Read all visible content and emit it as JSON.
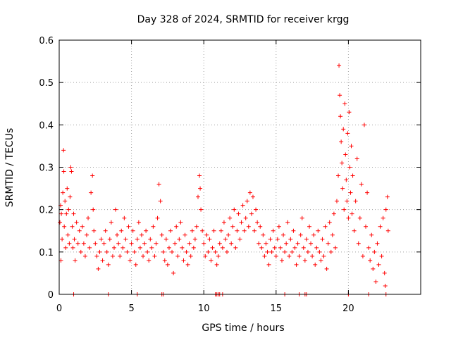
{
  "chart_data": {
    "type": "scatter",
    "title": "Day 328 of 2024, SRMTID for receiver krgg",
    "xlabel": "GPS time / hours",
    "ylabel": "SRMTID / TECUs",
    "xlim": [
      0,
      25
    ],
    "ylim": [
      0,
      0.6
    ],
    "x_ticks": [
      0,
      5,
      10,
      15,
      20
    ],
    "x_tick_labels": [
      "0",
      "5",
      "10",
      "15",
      "20"
    ],
    "y_ticks": [
      0,
      0.1,
      0.2,
      0.3,
      0.4,
      0.5,
      0.6
    ],
    "y_tick_labels": [
      "0",
      "0.1",
      "0.2",
      "0.3",
      "0.4",
      "0.5",
      "0.6"
    ],
    "grid": true,
    "marker": "plus",
    "series": [
      {
        "name": "krgg",
        "color": "#ff0000",
        "points": [
          [
            0.05,
            0.17
          ],
          [
            0.1,
            0.21
          ],
          [
            0.12,
            0.08
          ],
          [
            0.15,
            0.19
          ],
          [
            0.2,
            0.13
          ],
          [
            0.25,
            0.24
          ],
          [
            0.3,
            0.34
          ],
          [
            0.32,
            0.29
          ],
          [
            0.35,
            0.16
          ],
          [
            0.4,
            0.22
          ],
          [
            0.45,
            0.11
          ],
          [
            0.5,
            0.19
          ],
          [
            0.55,
            0.25
          ],
          [
            0.6,
            0.14
          ],
          [
            0.65,
            0.2
          ],
          [
            0.7,
            0.12
          ],
          [
            0.75,
            0.23
          ],
          [
            0.8,
            0.3
          ],
          [
            0.85,
            0.29
          ],
          [
            0.9,
            0.16
          ],
          [
            0.95,
            0.11
          ],
          [
            1.0,
            0.19
          ],
          [
            1.05,
            0.13
          ],
          [
            1.1,
            0.08
          ],
          [
            1.2,
            0.17
          ],
          [
            1.3,
            0.12
          ],
          [
            1.4,
            0.15
          ],
          [
            1.5,
            0.1
          ],
          [
            1.6,
            0.16
          ],
          [
            1.7,
            0.12
          ],
          [
            1.8,
            0.09
          ],
          [
            1.9,
            0.14
          ],
          [
            2.0,
            0.18
          ],
          [
            2.1,
            0.11
          ],
          [
            2.2,
            0.24
          ],
          [
            2.3,
            0.28
          ],
          [
            2.35,
            0.2
          ],
          [
            2.4,
            0.15
          ],
          [
            2.5,
            0.12
          ],
          [
            2.6,
            0.09
          ],
          [
            2.7,
            0.06
          ],
          [
            2.8,
            0.1
          ],
          [
            2.9,
            0.13
          ],
          [
            3.0,
            0.08
          ],
          [
            3.1,
            0.12
          ],
          [
            3.2,
            0.15
          ],
          [
            3.3,
            0.1
          ],
          [
            3.4,
            0.07
          ],
          [
            3.5,
            0.13
          ],
          [
            3.6,
            0.17
          ],
          [
            3.7,
            0.09
          ],
          [
            3.8,
            0.11
          ],
          [
            3.9,
            0.2
          ],
          [
            4.0,
            0.14
          ],
          [
            4.1,
            0.12
          ],
          [
            4.2,
            0.09
          ],
          [
            4.3,
            0.15
          ],
          [
            4.4,
            0.11
          ],
          [
            4.5,
            0.18
          ],
          [
            4.6,
            0.13
          ],
          [
            4.7,
            0.1
          ],
          [
            4.8,
            0.16
          ],
          [
            4.9,
            0.08
          ],
          [
            5.0,
            0.12
          ],
          [
            5.1,
            0.15
          ],
          [
            5.2,
            0.1
          ],
          [
            5.3,
            0.07
          ],
          [
            5.4,
            0.13
          ],
          [
            5.5,
            0.17
          ],
          [
            5.6,
            0.11
          ],
          [
            5.7,
            0.14
          ],
          [
            5.8,
            0.09
          ],
          [
            5.9,
            0.12
          ],
          [
            6.0,
            0.15
          ],
          [
            6.1,
            0.1
          ],
          [
            6.2,
            0.08
          ],
          [
            6.3,
            0.13
          ],
          [
            6.4,
            0.11
          ],
          [
            6.5,
            0.16
          ],
          [
            6.6,
            0.09
          ],
          [
            6.7,
            0.12
          ],
          [
            6.8,
            0.18
          ],
          [
            6.9,
            0.26
          ],
          [
            7.0,
            0.22
          ],
          [
            7.1,
            0.14
          ],
          [
            7.2,
            0.1
          ],
          [
            7.3,
            0.08
          ],
          [
            7.4,
            0.13
          ],
          [
            7.5,
            0.07
          ],
          [
            7.6,
            0.11
          ],
          [
            7.7,
            0.15
          ],
          [
            7.8,
            0.1
          ],
          [
            7.9,
            0.05
          ],
          [
            8.0,
            0.12
          ],
          [
            8.1,
            0.16
          ],
          [
            8.2,
            0.09
          ],
          [
            8.3,
            0.13
          ],
          [
            8.4,
            0.17
          ],
          [
            8.5,
            0.11
          ],
          [
            8.6,
            0.08
          ],
          [
            8.7,
            0.14
          ],
          [
            8.8,
            0.1
          ],
          [
            8.9,
            0.07
          ],
          [
            9.0,
            0.12
          ],
          [
            9.1,
            0.09
          ],
          [
            9.2,
            0.15
          ],
          [
            9.3,
            0.11
          ],
          [
            9.4,
            0.13
          ],
          [
            9.5,
            0.16
          ],
          [
            9.6,
            0.23
          ],
          [
            9.7,
            0.28
          ],
          [
            9.75,
            0.25
          ],
          [
            9.8,
            0.2
          ],
          [
            9.9,
            0.15
          ],
          [
            10.0,
            0.12
          ],
          [
            10.1,
            0.09
          ],
          [
            10.2,
            0.14
          ],
          [
            10.3,
            0.1
          ],
          [
            10.4,
            0.13
          ],
          [
            10.5,
            0.08
          ],
          [
            10.6,
            0.11
          ],
          [
            10.7,
            0.15
          ],
          [
            10.8,
            0.1
          ],
          [
            10.9,
            0.07
          ],
          [
            11.0,
            0.09
          ],
          [
            11.1,
            0.12
          ],
          [
            11.2,
            0.15
          ],
          [
            11.3,
            0.11
          ],
          [
            11.4,
            0.17
          ],
          [
            11.5,
            0.13
          ],
          [
            11.6,
            0.1
          ],
          [
            11.7,
            0.14
          ],
          [
            11.8,
            0.18
          ],
          [
            11.9,
            0.12
          ],
          [
            12.0,
            0.16
          ],
          [
            12.1,
            0.2
          ],
          [
            12.2,
            0.11
          ],
          [
            12.3,
            0.15
          ],
          [
            12.4,
            0.19
          ],
          [
            12.5,
            0.13
          ],
          [
            12.6,
            0.17
          ],
          [
            12.7,
            0.21
          ],
          [
            12.8,
            0.15
          ],
          [
            12.9,
            0.18
          ],
          [
            13.0,
            0.22
          ],
          [
            13.1,
            0.16
          ],
          [
            13.2,
            0.24
          ],
          [
            13.3,
            0.19
          ],
          [
            13.4,
            0.23
          ],
          [
            13.5,
            0.15
          ],
          [
            13.6,
            0.2
          ],
          [
            13.7,
            0.17
          ],
          [
            13.8,
            0.12
          ],
          [
            13.9,
            0.16
          ],
          [
            14.0,
            0.11
          ],
          [
            14.1,
            0.14
          ],
          [
            14.2,
            0.09
          ],
          [
            14.3,
            0.12
          ],
          [
            14.4,
            0.1
          ],
          [
            14.5,
            0.07
          ],
          [
            14.6,
            0.13
          ],
          [
            14.7,
            0.1
          ],
          [
            14.8,
            0.15
          ],
          [
            14.9,
            0.11
          ],
          [
            15.0,
            0.09
          ],
          [
            15.1,
            0.13
          ],
          [
            15.2,
            0.16
          ],
          [
            15.3,
            0.11
          ],
          [
            15.4,
            0.08
          ],
          [
            15.5,
            0.14
          ],
          [
            15.6,
            0.1
          ],
          [
            15.7,
            0.12
          ],
          [
            15.8,
            0.17
          ],
          [
            15.9,
            0.09
          ],
          [
            16.0,
            0.13
          ],
          [
            16.1,
            0.1
          ],
          [
            16.2,
            0.15
          ],
          [
            16.3,
            0.11
          ],
          [
            16.4,
            0.07
          ],
          [
            16.5,
            0.12
          ],
          [
            16.6,
            0.09
          ],
          [
            16.7,
            0.14
          ],
          [
            16.8,
            0.18
          ],
          [
            16.9,
            0.11
          ],
          [
            17.0,
            0.08
          ],
          [
            17.1,
            0.13
          ],
          [
            17.2,
            0.1
          ],
          [
            17.3,
            0.16
          ],
          [
            17.4,
            0.12
          ],
          [
            17.5,
            0.09
          ],
          [
            17.6,
            0.14
          ],
          [
            17.7,
            0.07
          ],
          [
            17.8,
            0.11
          ],
          [
            17.9,
            0.15
          ],
          [
            18.0,
            0.1
          ],
          [
            18.1,
            0.08
          ],
          [
            18.2,
            0.13
          ],
          [
            18.3,
            0.09
          ],
          [
            18.4,
            0.16
          ],
          [
            18.5,
            0.06
          ],
          [
            18.6,
            0.12
          ],
          [
            18.7,
            0.17
          ],
          [
            18.8,
            0.1
          ],
          [
            18.9,
            0.14
          ],
          [
            19.0,
            0.19
          ],
          [
            19.1,
            0.11
          ],
          [
            19.2,
            0.22
          ],
          [
            19.3,
            0.28
          ],
          [
            19.35,
            0.54
          ],
          [
            19.4,
            0.47
          ],
          [
            19.45,
            0.42
          ],
          [
            19.5,
            0.36
          ],
          [
            19.55,
            0.31
          ],
          [
            19.6,
            0.25
          ],
          [
            19.65,
            0.39
          ],
          [
            19.7,
            0.2
          ],
          [
            19.75,
            0.45
          ],
          [
            19.8,
            0.33
          ],
          [
            19.85,
            0.27
          ],
          [
            19.9,
            0.22
          ],
          [
            19.95,
            0.38
          ],
          [
            20.0,
            0.18
          ],
          [
            20.05,
            0.43
          ],
          [
            20.1,
            0.3
          ],
          [
            20.15,
            0.24
          ],
          [
            20.2,
            0.35
          ],
          [
            20.25,
            0.19
          ],
          [
            20.3,
            0.28
          ],
          [
            20.4,
            0.15
          ],
          [
            20.5,
            0.22
          ],
          [
            20.6,
            0.32
          ],
          [
            20.7,
            0.12
          ],
          [
            20.8,
            0.18
          ],
          [
            20.9,
            0.26
          ],
          [
            21.0,
            0.09
          ],
          [
            21.1,
            0.4
          ],
          [
            21.2,
            0.16
          ],
          [
            21.3,
            0.24
          ],
          [
            21.4,
            0.11
          ],
          [
            21.5,
            0.08
          ],
          [
            21.6,
            0.14
          ],
          [
            21.7,
            0.06
          ],
          [
            21.8,
            0.1
          ],
          [
            21.9,
            0.03
          ],
          [
            22.0,
            0.12
          ],
          [
            22.1,
            0.07
          ],
          [
            22.2,
            0.16
          ],
          [
            22.3,
            0.09
          ],
          [
            22.4,
            0.18
          ],
          [
            22.5,
            0.05
          ],
          [
            22.55,
            0.02
          ],
          [
            22.6,
            0.2
          ],
          [
            22.7,
            0.23
          ],
          [
            22.75,
            0.15
          ]
        ]
      }
    ],
    "zero_markers": [
      1.0,
      3.4,
      5.4,
      7.1,
      7.2,
      10.8,
      10.9,
      11.0,
      11.1,
      11.3,
      15.6,
      16.6,
      17.0,
      17.1,
      20.0,
      21.4,
      22.6
    ]
  }
}
